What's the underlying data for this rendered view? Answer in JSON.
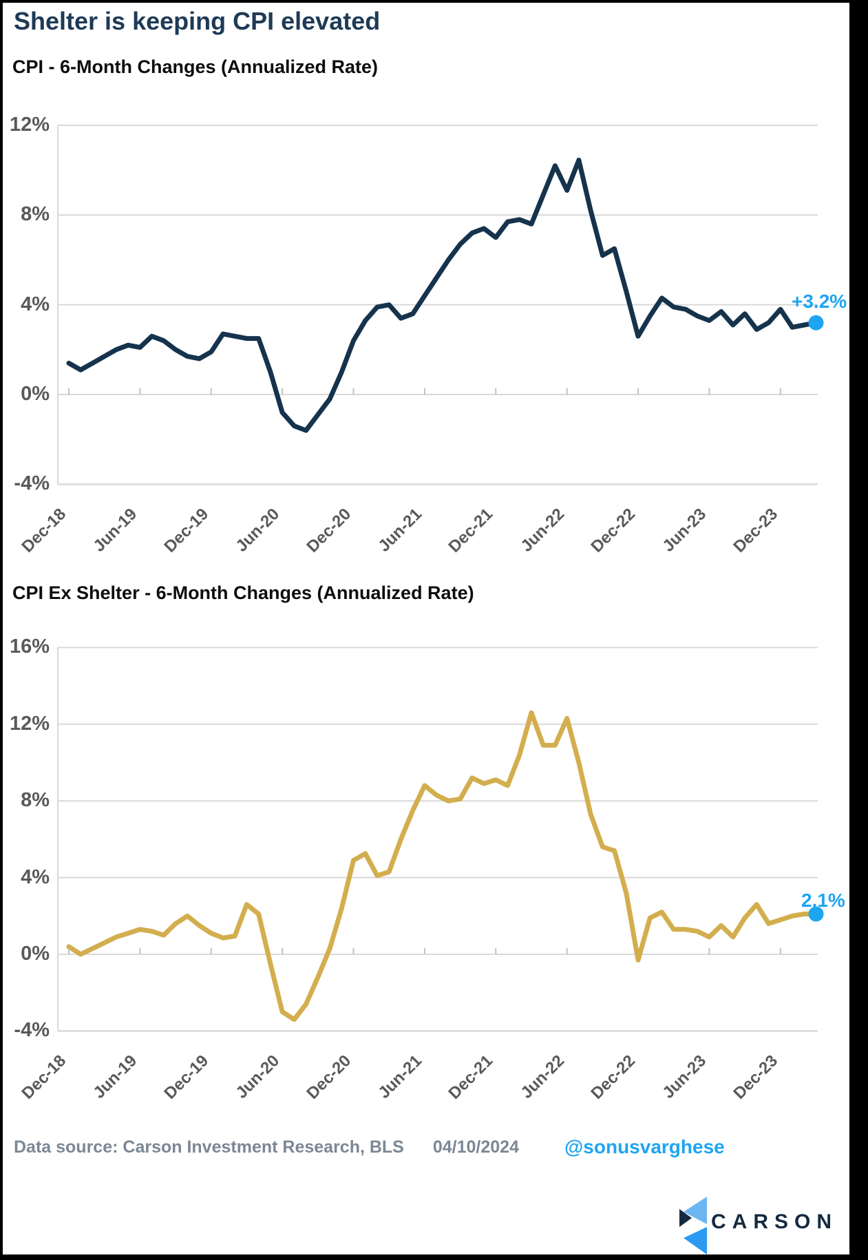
{
  "page": {
    "title": "Shelter is keeping CPI elevated"
  },
  "footer": {
    "source_text": "Data source: Carson Investment Research, BLS",
    "date": "04/10/2024",
    "handle": "@sonusvarghese",
    "logo_text": "CARSON"
  },
  "colors": {
    "title_navy": "#1e3a56",
    "cpi_line": "#16334d",
    "ex_shelter_line": "#d3ae4e",
    "accent_blue": "#1da5f2",
    "axis_label_gray": "#595959",
    "gridline_gray": "#d9d9d9",
    "footer_gray": "#7b8794",
    "logo_navy": "#152a40",
    "logo_light_blue": "#6db6f2",
    "logo_mid_blue": "#2b9af0"
  },
  "chart_data": [
    {
      "type": "line",
      "title": "CPI - 6-Month Changes (Annualized Rate)",
      "ylabel": "",
      "xlabel": "",
      "ylim": [
        -4,
        12
      ],
      "grid": true,
      "legend": false,
      "y_tick_labels": [
        "12%",
        "8%",
        "4%",
        "0%",
        "-4%"
      ],
      "y_tick_values": [
        12,
        8,
        4,
        0,
        -4
      ],
      "x_tick_labels": [
        "Dec-18",
        "Jun-19",
        "Dec-19",
        "Jun-20",
        "Dec-20",
        "Jun-21",
        "Dec-21",
        "Jun-22",
        "Dec-22",
        "Jun-23",
        "Dec-23"
      ],
      "end_label": "+3.2%",
      "end_value": 3.2,
      "categories": [
        "Dec-18",
        "Jan-19",
        "Feb-19",
        "Mar-19",
        "Apr-19",
        "May-19",
        "Jun-19",
        "Jul-19",
        "Aug-19",
        "Sep-19",
        "Oct-19",
        "Nov-19",
        "Dec-19",
        "Jan-20",
        "Feb-20",
        "Mar-20",
        "Apr-20",
        "May-20",
        "Jun-20",
        "Jul-20",
        "Aug-20",
        "Sep-20",
        "Oct-20",
        "Nov-20",
        "Dec-20",
        "Jan-21",
        "Feb-21",
        "Mar-21",
        "Apr-21",
        "May-21",
        "Jun-21",
        "Jul-21",
        "Aug-21",
        "Sep-21",
        "Oct-21",
        "Nov-21",
        "Dec-21",
        "Jan-22",
        "Feb-22",
        "Mar-22",
        "Apr-22",
        "May-22",
        "Jun-22",
        "Jul-22",
        "Aug-22",
        "Sep-22",
        "Oct-22",
        "Nov-22",
        "Dec-22",
        "Jan-23",
        "Feb-23",
        "Mar-23",
        "Apr-23",
        "May-23",
        "Jun-23",
        "Jul-23",
        "Aug-23",
        "Sep-23",
        "Oct-23",
        "Nov-23",
        "Dec-23",
        "Jan-24",
        "Feb-24",
        "Mar-24"
      ],
      "series": [
        {
          "name": "CPI 6-month annualized change",
          "color": "#16334d",
          "values": [
            1.4,
            1.1,
            1.4,
            1.7,
            2.0,
            2.2,
            2.1,
            2.6,
            2.4,
            2.0,
            1.7,
            1.6,
            1.9,
            2.7,
            2.6,
            2.5,
            2.5,
            1.0,
            -0.8,
            -1.4,
            -1.6,
            -0.9,
            -0.2,
            1.0,
            2.4,
            3.3,
            3.9,
            4.0,
            3.4,
            3.6,
            4.4,
            5.2,
            6.0,
            6.7,
            7.2,
            7.4,
            7.0,
            7.7,
            7.8,
            7.6,
            8.9,
            10.2,
            9.1,
            10.45,
            8.2,
            6.2,
            6.5,
            4.6,
            2.6,
            3.5,
            4.3,
            3.9,
            3.8,
            3.5,
            3.3,
            3.7,
            3.1,
            3.6,
            2.9,
            3.2,
            3.8,
            3.0,
            3.1,
            3.2
          ]
        }
      ]
    },
    {
      "type": "line",
      "title": "CPI Ex Shelter - 6-Month Changes (Annualized Rate)",
      "ylabel": "",
      "xlabel": "",
      "ylim": [
        -4,
        16
      ],
      "grid": true,
      "legend": false,
      "y_tick_labels": [
        "16%",
        "12%",
        "8%",
        "4%",
        "0%",
        "-4%"
      ],
      "y_tick_values": [
        16,
        12,
        8,
        4,
        0,
        -4
      ],
      "x_tick_labels": [
        "Dec-18",
        "Jun-19",
        "Dec-19",
        "Jun-20",
        "Dec-20",
        "Jun-21",
        "Dec-21",
        "Jun-22",
        "Dec-22",
        "Jun-23",
        "Dec-23"
      ],
      "end_label": "2.1%",
      "end_value": 2.1,
      "categories": [
        "Dec-18",
        "Jan-19",
        "Feb-19",
        "Mar-19",
        "Apr-19",
        "May-19",
        "Jun-19",
        "Jul-19",
        "Aug-19",
        "Sep-19",
        "Oct-19",
        "Nov-19",
        "Dec-19",
        "Jan-20",
        "Feb-20",
        "Mar-20",
        "Apr-20",
        "May-20",
        "Jun-20",
        "Jul-20",
        "Aug-20",
        "Sep-20",
        "Oct-20",
        "Nov-20",
        "Dec-20",
        "Jan-21",
        "Feb-21",
        "Mar-21",
        "Apr-21",
        "May-21",
        "Jun-21",
        "Jul-21",
        "Aug-21",
        "Sep-21",
        "Oct-21",
        "Nov-21",
        "Dec-21",
        "Jan-22",
        "Feb-22",
        "Mar-22",
        "Apr-22",
        "May-22",
        "Jun-22",
        "Jul-22",
        "Aug-22",
        "Sep-22",
        "Oct-22",
        "Nov-22",
        "Dec-22",
        "Jan-23",
        "Feb-23",
        "Mar-23",
        "Apr-23",
        "May-23",
        "Jun-23",
        "Jul-23",
        "Aug-23",
        "Sep-23",
        "Oct-23",
        "Nov-23",
        "Dec-23",
        "Jan-24",
        "Feb-24",
        "Mar-24"
      ],
      "series": [
        {
          "name": "CPI ex shelter 6-month annualized change",
          "color": "#d3ae4e",
          "values": [
            0.4,
            0.0,
            0.3,
            0.6,
            0.9,
            1.1,
            1.3,
            1.2,
            1.0,
            1.6,
            2.0,
            1.5,
            1.1,
            0.85,
            0.95,
            2.6,
            2.1,
            -0.5,
            -3.0,
            -3.4,
            -2.6,
            -1.2,
            0.3,
            2.4,
            4.9,
            5.25,
            4.1,
            4.3,
            6.0,
            7.5,
            8.8,
            8.3,
            8.0,
            8.1,
            9.2,
            8.9,
            9.1,
            8.8,
            10.4,
            12.6,
            10.9,
            10.9,
            12.3,
            10.0,
            7.3,
            5.6,
            5.4,
            3.2,
            -0.3,
            1.9,
            2.2,
            1.3,
            1.3,
            1.2,
            0.9,
            1.5,
            0.9,
            1.9,
            2.6,
            1.6,
            1.8,
            2.0,
            2.1,
            2.1
          ]
        }
      ]
    }
  ]
}
